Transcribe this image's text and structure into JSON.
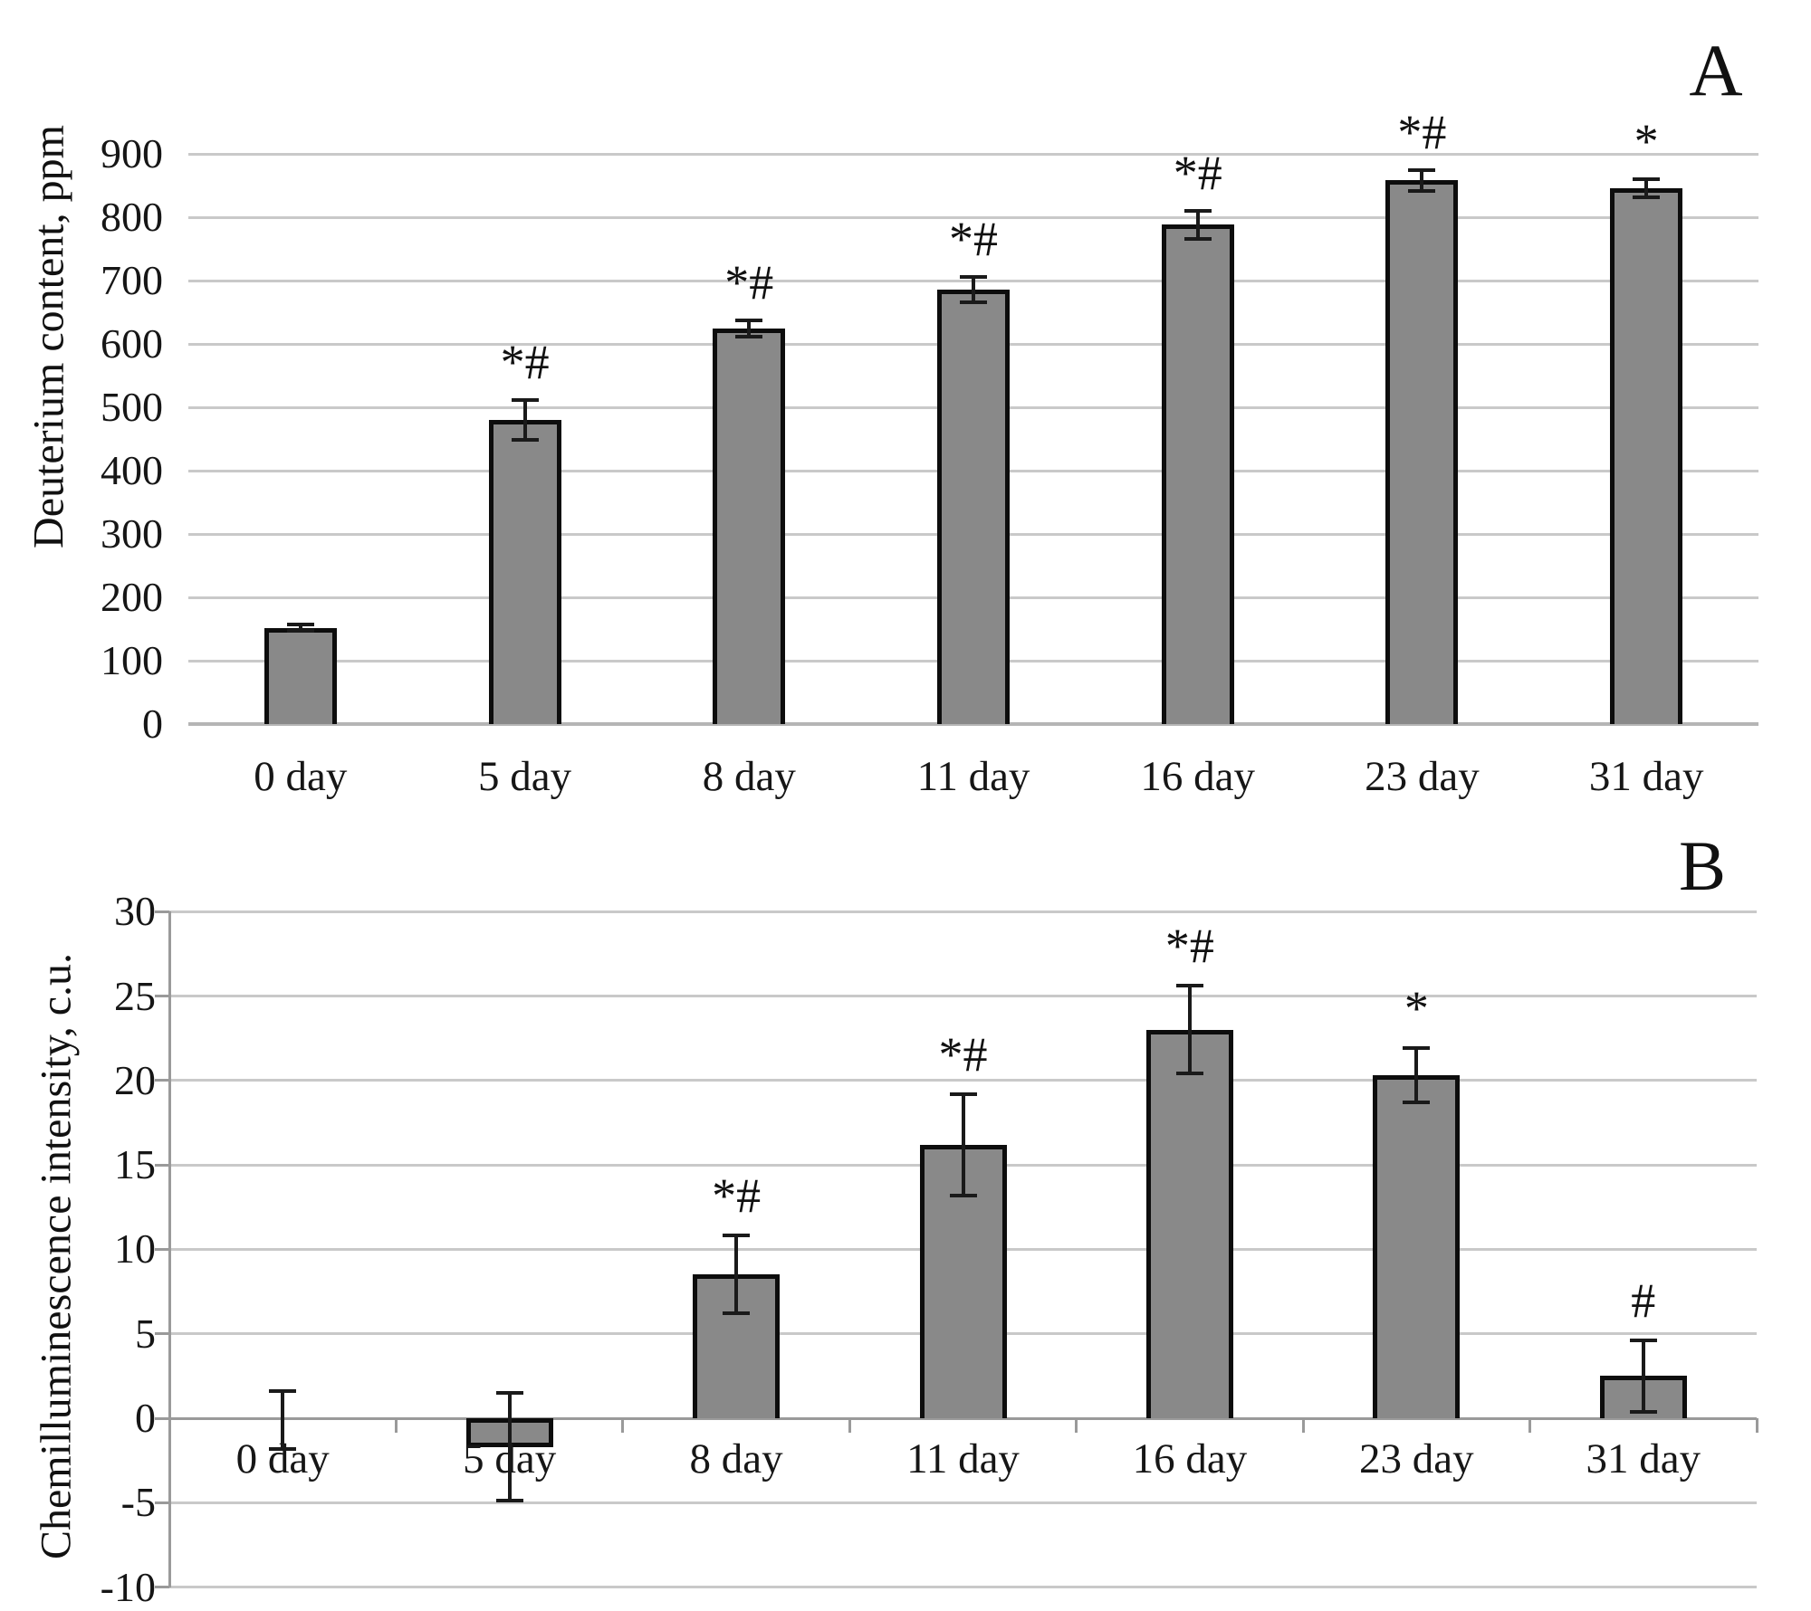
{
  "figure": {
    "background": "#ffffff",
    "bar_fill": "#898989",
    "bar_border": "#0d0d0d",
    "gridline_color": "#c9c9c9",
    "axis_color": "#9a9a9a",
    "error_bar_color": "#1a1a1a",
    "text_color": "#161616"
  },
  "chart_data": [
    {
      "panel": "A",
      "type": "bar",
      "title": "",
      "ylabel": "Deuterium content, ppm",
      "xlabel": "",
      "categories": [
        "0 day",
        "5 day",
        "8 day",
        "11 day",
        "16 day",
        "23 day",
        "31 day"
      ],
      "values": [
        152,
        480,
        624,
        686,
        788,
        858,
        846
      ],
      "errors": [
        5,
        31,
        13,
        20,
        22,
        16,
        14
      ],
      "annotations": [
        "",
        "*#",
        "*#",
        "*#",
        "*#",
        "*#",
        "*"
      ],
      "ylim": [
        0,
        900
      ],
      "ytick_step": 100,
      "ytick_labels": [
        "0",
        "100",
        "200",
        "300",
        "400",
        "500",
        "600",
        "700",
        "800",
        "900"
      ],
      "grid": true,
      "legend": "none"
    },
    {
      "panel": "B",
      "type": "bar",
      "title": "",
      "ylabel": "Chemilluminescence intensity, c.u.",
      "xlabel": "",
      "categories": [
        "0 day",
        "5 day",
        "8 day",
        "11 day",
        "16 day",
        "23 day",
        "31 day"
      ],
      "values": [
        -0.1,
        -1.7,
        8.5,
        16.2,
        23,
        20.3,
        2.5
      ],
      "errors": [
        1.7,
        3.2,
        2.3,
        3,
        2.6,
        1.6,
        2.1
      ],
      "annotations": [
        "",
        "",
        "*#",
        "*#",
        "*#",
        "*",
        "#"
      ],
      "ylim": [
        -10,
        30
      ],
      "ytick_step": 5,
      "ytick_labels": [
        "-10",
        "-5",
        "0",
        "5",
        "10",
        "15",
        "20",
        "25",
        "30"
      ],
      "grid": true,
      "legend": "none"
    }
  ]
}
